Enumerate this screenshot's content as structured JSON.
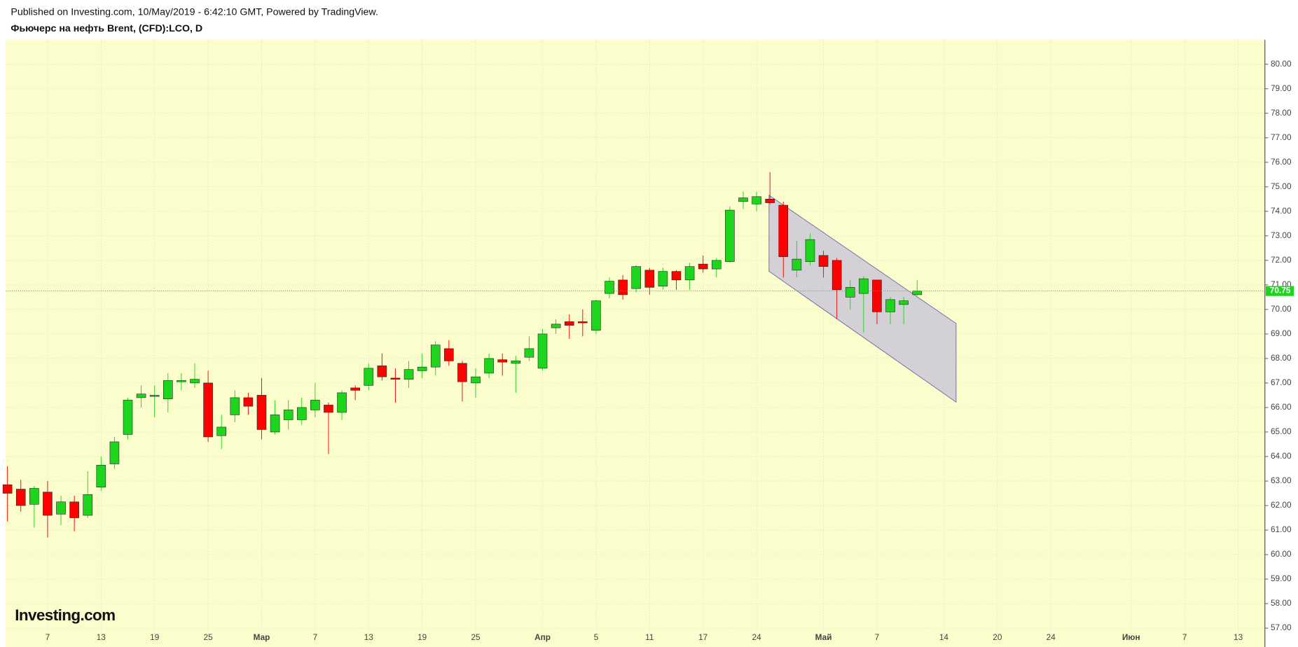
{
  "header": "Published on Investing.com, 10/May/2019 - 6:42:10 GMT, Powered by TradingView.",
  "logo": "Investing.com",
  "chart_data": {
    "type": "candlestick",
    "title": "Фьючерс на нефть Brent, (CFD):LCO, D",
    "categories": [
      null,
      null,
      null,
      "7",
      null,
      null,
      null,
      "13",
      null,
      null,
      null,
      "19",
      null,
      null,
      null,
      "25",
      null,
      null,
      null,
      "Мар",
      null,
      null,
      null,
      "7",
      null,
      null,
      null,
      "13",
      null,
      null,
      null,
      "19",
      null,
      null,
      null,
      "25",
      null,
      null,
      null,
      null,
      "Апр",
      null,
      null,
      null,
      "5",
      null,
      null,
      null,
      "11",
      null,
      null,
      null,
      "17",
      null,
      null,
      null,
      "24",
      null,
      null,
      null,
      null,
      "Май",
      null,
      null,
      null,
      "7",
      null,
      null,
      null,
      null,
      "14",
      null,
      null,
      null,
      "20",
      null,
      null,
      null,
      "24",
      null,
      null,
      null,
      null,
      null,
      "Июн",
      null,
      null,
      null,
      "7",
      null,
      null,
      null,
      "13",
      null
    ],
    "month_labels": [
      "Мар",
      "Апр",
      "Май",
      "Июн"
    ],
    "open": [
      62.85,
      62.67,
      62.05,
      62.55,
      61.65,
      62.15,
      61.6,
      62.75,
      63.7,
      64.9,
      66.4,
      66.45,
      66.35,
      67.05,
      67.0,
      67.0,
      64.85,
      65.7,
      66.4,
      66.5,
      65.0,
      65.5,
      65.5,
      65.9,
      66.1,
      65.8,
      66.8,
      66.9,
      67.7,
      67.2,
      67.15,
      67.5,
      67.65,
      68.4,
      67.8,
      67.0,
      67.4,
      67.95,
      67.8,
      68.05,
      67.6,
      69.25,
      69.5,
      69.5,
      69.15,
      70.65,
      71.2,
      70.85,
      71.6,
      70.95,
      71.55,
      71.2,
      71.85,
      71.65,
      71.95,
      74.4,
      74.3,
      74.5,
      74.25,
      71.6,
      71.95,
      72.2,
      72.0,
      70.5,
      70.65,
      71.2,
      69.9,
      70.2,
      70.6,
      null,
      null,
      null,
      null,
      null,
      null,
      null,
      null,
      null,
      null,
      null,
      null,
      null,
      null,
      null,
      null,
      null,
      null,
      null,
      null,
      null,
      null,
      null,
      null,
      null
    ],
    "high": [
      63.6,
      63.05,
      62.8,
      63.0,
      62.4,
      62.4,
      63.4,
      64.0,
      64.8,
      66.4,
      66.9,
      66.9,
      67.4,
      67.4,
      67.8,
      67.5,
      65.7,
      66.7,
      66.6,
      67.2,
      66.3,
      66.3,
      66.4,
      67.0,
      66.2,
      66.7,
      66.9,
      67.8,
      68.2,
      67.6,
      67.9,
      68.2,
      68.7,
      68.75,
      67.9,
      67.6,
      68.2,
      68.2,
      68.1,
      68.9,
      69.2,
      69.6,
      69.8,
      70.0,
      70.4,
      71.3,
      71.4,
      71.8,
      71.7,
      71.7,
      71.6,
      71.9,
      72.2,
      72.1,
      74.2,
      74.8,
      74.8,
      75.6,
      74.4,
      72.8,
      73.1,
      72.4,
      72.1,
      71.2,
      71.35,
      71.2,
      70.5,
      70.5,
      71.2,
      null,
      null,
      null,
      null,
      null,
      null,
      null,
      null,
      null,
      null,
      null,
      null,
      null,
      null,
      null,
      null,
      null,
      null,
      null,
      null,
      null,
      null,
      null,
      null,
      null
    ],
    "low": [
      61.35,
      61.75,
      61.1,
      60.7,
      61.2,
      60.95,
      61.5,
      62.6,
      63.5,
      64.7,
      66.0,
      65.6,
      65.8,
      66.7,
      66.8,
      64.6,
      64.3,
      65.4,
      65.7,
      64.7,
      64.9,
      65.1,
      65.3,
      65.6,
      64.1,
      65.5,
      66.3,
      66.7,
      67.1,
      66.2,
      66.8,
      67.2,
      67.3,
      67.7,
      66.25,
      66.4,
      67.2,
      67.3,
      66.6,
      67.9,
      67.5,
      69.0,
      68.8,
      68.9,
      69.0,
      70.45,
      70.4,
      70.7,
      70.6,
      70.8,
      70.8,
      70.8,
      71.5,
      71.3,
      71.9,
      74.1,
      74.0,
      74.3,
      71.3,
      71.3,
      71.8,
      71.3,
      69.6,
      70.0,
      69.05,
      69.4,
      69.4,
      69.4,
      70.55,
      null,
      null,
      null,
      null,
      null,
      null,
      null,
      null,
      null,
      null,
      null,
      null,
      null,
      null,
      null,
      null,
      null,
      null,
      null,
      null,
      null,
      null,
      null,
      null,
      null
    ],
    "close": [
      62.5,
      62.0,
      62.7,
      61.6,
      62.15,
      61.5,
      62.45,
      63.65,
      64.6,
      66.3,
      66.55,
      66.5,
      67.1,
      67.1,
      67.15,
      64.8,
      65.2,
      66.4,
      66.05,
      65.1,
      65.7,
      65.9,
      66.0,
      66.3,
      65.8,
      66.6,
      66.7,
      67.6,
      67.25,
      67.15,
      67.55,
      67.65,
      68.55,
      67.9,
      67.05,
      67.25,
      68.0,
      67.85,
      67.9,
      68.4,
      69.0,
      69.4,
      69.35,
      69.45,
      70.35,
      71.15,
      70.6,
      71.75,
      70.9,
      71.55,
      71.2,
      71.75,
      71.65,
      72.0,
      74.05,
      74.55,
      74.6,
      74.35,
      72.15,
      72.05,
      72.85,
      71.75,
      70.8,
      70.9,
      71.25,
      69.9,
      70.4,
      70.35,
      70.75,
      null,
      null,
      null,
      null,
      null,
      null,
      null,
      null,
      null,
      null,
      null,
      null,
      null,
      null,
      null,
      null,
      null,
      null,
      null,
      null,
      null,
      null,
      null,
      null,
      null
    ],
    "up_color": "#1ed51e",
    "down_color": "#ff0000",
    "last_price": 70.75,
    "last_price_color": "#1ed51e",
    "background": "#fcfdcd",
    "grid": true,
    "ylim": [
      56.4,
      81.0
    ],
    "yticks": [
      {
        "value": 57,
        "label": "57.00"
      },
      {
        "value": 58,
        "label": "58.00"
      },
      {
        "value": 59,
        "label": "59.00"
      },
      {
        "value": 60,
        "label": "60.00"
      },
      {
        "value": 61,
        "label": "61.00"
      },
      {
        "value": 62,
        "label": "62.00"
      },
      {
        "value": 63,
        "label": "63.00"
      },
      {
        "value": 64,
        "label": "64.00"
      },
      {
        "value": 65,
        "label": "65.00"
      },
      {
        "value": 66,
        "label": "66.00"
      },
      {
        "value": 67,
        "label": "67.00"
      },
      {
        "value": 68,
        "label": "68.00"
      },
      {
        "value": 69,
        "label": "69.00"
      },
      {
        "value": 70,
        "label": "70.00"
      },
      {
        "value": 71,
        "label": "71.00"
      },
      {
        "value": 72,
        "label": "72.00"
      },
      {
        "value": 73,
        "label": "73.00"
      },
      {
        "value": 74,
        "label": "74.00"
      },
      {
        "value": 75,
        "label": "75.00"
      },
      {
        "value": 76,
        "label": "76.00"
      },
      {
        "value": 77,
        "label": "77.00"
      },
      {
        "value": 78,
        "label": "78.00"
      },
      {
        "value": 79,
        "label": "79.00"
      },
      {
        "value": 80,
        "label": "80.00"
      }
    ]
  }
}
